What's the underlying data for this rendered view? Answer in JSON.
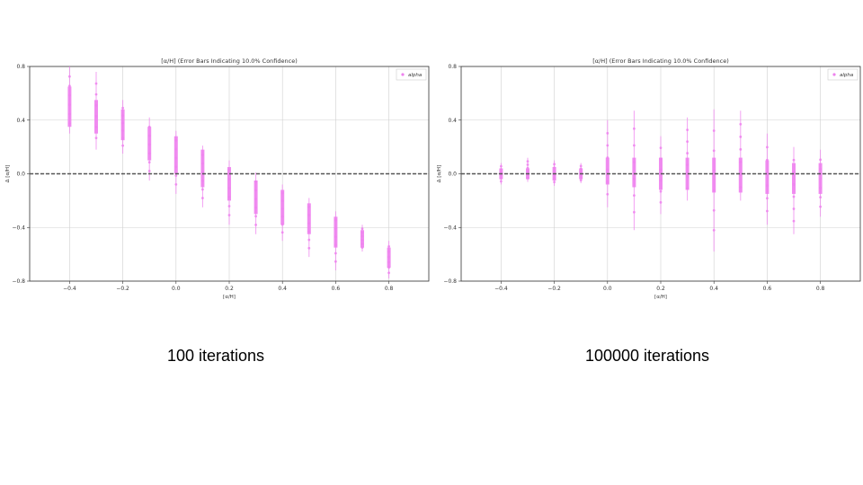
{
  "charts_meta": {
    "accent_color": "#ee82ee",
    "zero_line_color": "#555555",
    "grid_color": "#d0d0d0"
  },
  "chart_data": [
    {
      "type": "scatter",
      "title": "[α/H] (Error Bars Indicating 10.0% Confidence)",
      "xlabel": "[α/H]",
      "ylabel": "Δ [α/H]",
      "xlim": [
        -0.55,
        0.95
      ],
      "ylim": [
        -0.8,
        0.8
      ],
      "xticks": [
        -0.4,
        -0.2,
        0.0,
        0.2,
        0.4,
        0.6,
        0.8
      ],
      "xtick_labels": [
        "−0.4",
        "−0.2",
        "0.0",
        "0.2",
        "0.4",
        "0.6",
        "0.8"
      ],
      "yticks": [
        -0.8,
        -0.4,
        0.0,
        0.4,
        0.8
      ],
      "ytick_labels": [
        "−0.8",
        "−0.4",
        "0.0",
        "0.4",
        "0.8"
      ],
      "grid": true,
      "legend_placement": "top-right",
      "reference_line": {
        "y": 0.0,
        "style": "dashed"
      },
      "series": [
        {
          "name": "alpha",
          "color": "#ee82ee",
          "x": [
            -0.4,
            -0.3,
            -0.2,
            -0.1,
            0.0,
            0.1,
            0.2,
            0.3,
            0.4,
            0.5,
            0.6,
            0.7,
            0.8
          ],
          "y_low": [
            0.35,
            0.3,
            0.25,
            0.1,
            0.0,
            -0.1,
            -0.2,
            -0.3,
            -0.38,
            -0.45,
            -0.55,
            -0.55,
            -0.7
          ],
          "y_high": [
            0.65,
            0.55,
            0.48,
            0.35,
            0.28,
            0.18,
            0.05,
            -0.05,
            -0.12,
            -0.22,
            -0.32,
            -0.42,
            -0.55
          ],
          "y_min": [
            0.3,
            0.18,
            0.15,
            -0.05,
            -0.15,
            -0.25,
            -0.38,
            -0.45,
            -0.5,
            -0.62,
            -0.72,
            -0.58,
            -0.78
          ],
          "y_max": [
            0.8,
            0.76,
            0.55,
            0.42,
            0.32,
            0.21,
            0.1,
            0.01,
            -0.08,
            -0.18,
            -0.28,
            -0.38,
            -0.5
          ]
        }
      ]
    },
    {
      "type": "scatter",
      "title": "[α/H] (Error Bars Indicating 10.0% Confidence)",
      "xlabel": "[α/H]",
      "ylabel": "Δ [α/H]",
      "xlim": [
        -0.55,
        0.95
      ],
      "ylim": [
        -0.8,
        0.8
      ],
      "xticks": [
        -0.4,
        -0.2,
        0.0,
        0.2,
        0.4,
        0.6,
        0.8
      ],
      "xtick_labels": [
        "−0.4",
        "−0.2",
        "0.0",
        "0.2",
        "0.4",
        "0.6",
        "0.8"
      ],
      "yticks": [
        -0.8,
        -0.4,
        0.0,
        0.4,
        0.8
      ],
      "ytick_labels": [
        "−0.8",
        "−0.4",
        "0.0",
        "0.4",
        "0.8"
      ],
      "grid": true,
      "legend_placement": "top-right",
      "reference_line": {
        "y": 0.0,
        "style": "dashed"
      },
      "series": [
        {
          "name": "alpha",
          "color": "#ee82ee",
          "x": [
            -0.4,
            -0.3,
            -0.2,
            -0.1,
            0.0,
            0.1,
            0.2,
            0.3,
            0.4,
            0.5,
            0.6,
            0.7,
            0.8
          ],
          "y_low": [
            -0.04,
            -0.04,
            -0.05,
            -0.04,
            -0.08,
            -0.1,
            -0.12,
            -0.12,
            -0.14,
            -0.14,
            -0.15,
            -0.15,
            -0.15
          ],
          "y_high": [
            0.04,
            0.04,
            0.05,
            0.04,
            0.12,
            0.12,
            0.12,
            0.12,
            0.12,
            0.12,
            0.1,
            0.08,
            0.08
          ],
          "y_min": [
            -0.08,
            -0.06,
            -0.09,
            -0.07,
            -0.25,
            -0.42,
            -0.3,
            -0.2,
            -0.58,
            -0.2,
            -0.38,
            -0.45,
            -0.32
          ],
          "y_max": [
            0.08,
            0.12,
            0.1,
            0.08,
            0.4,
            0.47,
            0.28,
            0.42,
            0.48,
            0.47,
            0.3,
            0.2,
            0.18
          ]
        }
      ]
    }
  ],
  "captions": {
    "left": "100 iterations",
    "right": "100000 iterations"
  }
}
